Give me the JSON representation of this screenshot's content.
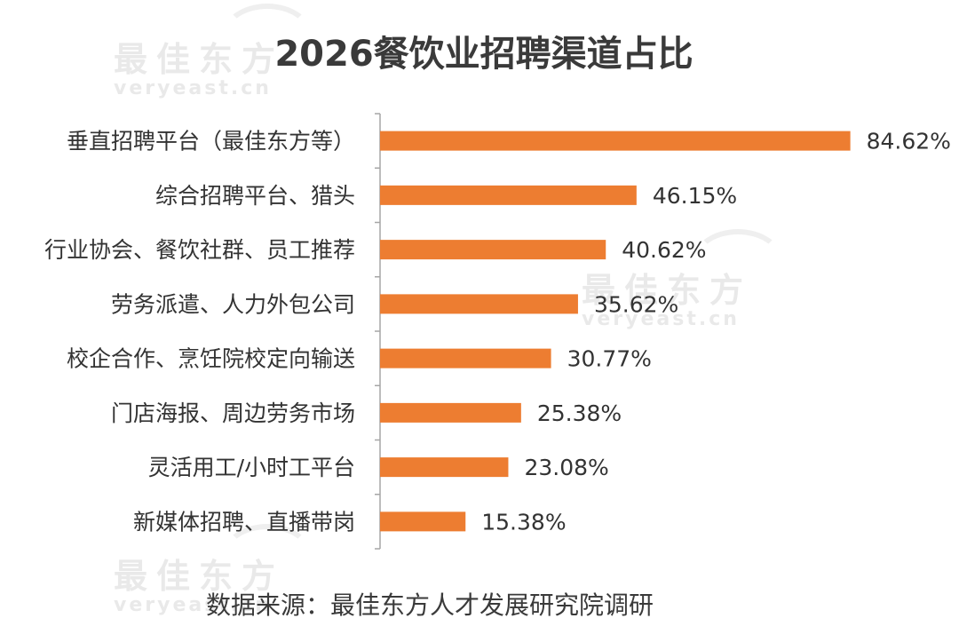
{
  "title": "2026餐饮业招聘渠道占比",
  "source": "数据来源：最佳东方人才发展研究院调研",
  "watermark": {
    "text_cn": "最佳东方",
    "text_en": "veryeast.cn"
  },
  "colors": {
    "bar": "#ED7D31",
    "text": "#333333",
    "axis": "#A6A6A6"
  },
  "chart_data": {
    "type": "bar",
    "orientation": "horizontal",
    "categories": [
      "垂直招聘平台（最佳东方等）",
      "综合招聘平台、猎头",
      "行业协会、餐饮社群、员工推荐",
      "劳务派遣、人力外包公司",
      "校企合作、烹饪院校定向输送",
      "门店海报、周边劳务市场",
      "灵活用工/小时工平台",
      "新媒体招聘、直播带岗"
    ],
    "values": [
      84.62,
      46.15,
      40.62,
      35.62,
      30.77,
      25.38,
      23.08,
      15.38
    ],
    "value_labels": [
      "84.62%",
      "46.15%",
      "40.62%",
      "35.62%",
      "30.77%",
      "25.38%",
      "23.08%",
      "15.38%"
    ],
    "xlim": [
      0,
      85
    ],
    "grid": false,
    "legend": "none"
  }
}
